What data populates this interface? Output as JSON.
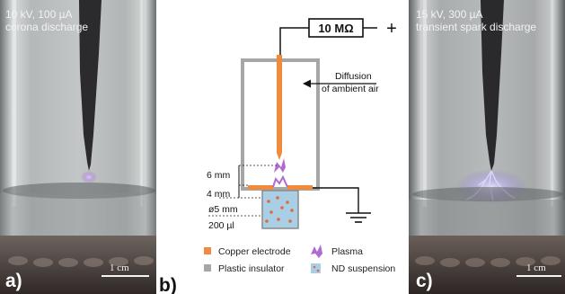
{
  "panel_a": {
    "line1": "10 kV, 100 µA",
    "line2": "corona discharge",
    "letter": "a)",
    "scale": "1 cm"
  },
  "panel_b": {
    "letter": "b)",
    "resistor": "10 MΩ",
    "plus": "+",
    "diffusion_line1": "Diffusion",
    "diffusion_line2": "of ambient air",
    "dim_gap": "6 mm",
    "dim_depth": "4 mm",
    "dim_diameter": "ø5 mm",
    "dim_volume": "200 µl",
    "legend": {
      "copper": "Copper electrode",
      "plastic": "Plastic insulator",
      "plasma": "Plasma",
      "nd": "ND suspension"
    },
    "colors": {
      "copper": "#f08a3c",
      "plastic": "#a6a6a6",
      "plasma": "#b06ad0",
      "nd_fill": "#a9cfe6",
      "nd_dot": "#e26a3a"
    }
  },
  "panel_c": {
    "line1": "15 kV, 300 µA",
    "line2": "transient spark discharge",
    "letter": "c)",
    "scale": "1 cm"
  }
}
